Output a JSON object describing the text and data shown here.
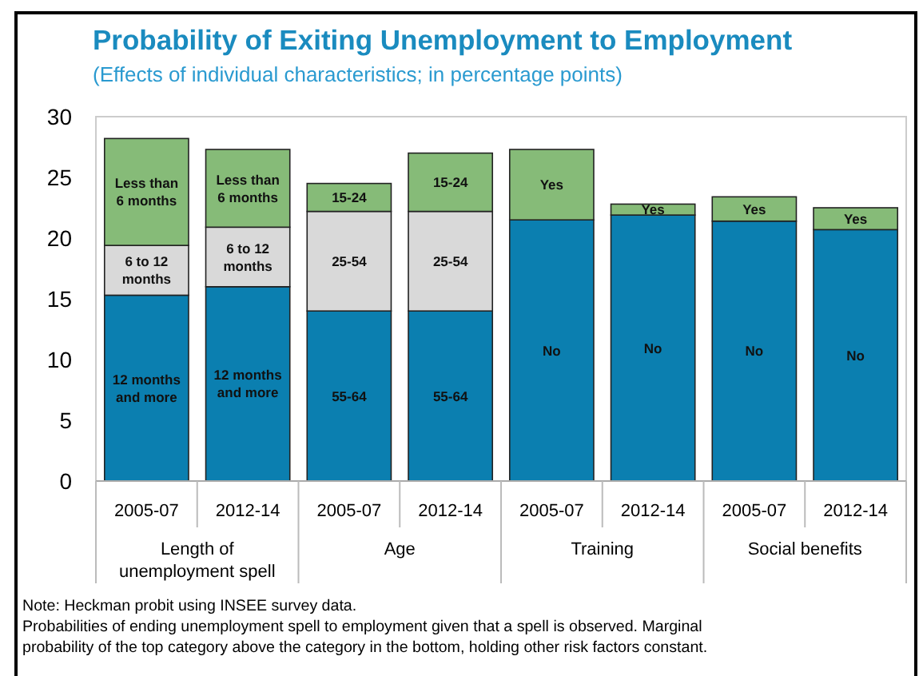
{
  "chart_data": {
    "type": "bar",
    "stacked": true,
    "title": "Probability of Exiting Unemployment to Employment",
    "subtitle": "(Effects of individual characteristics; in percentage points)",
    "categories": [
      "2005-07",
      "2012-14",
      "2005-07",
      "2012-14",
      "2005-07",
      "2012-14",
      "2005-07",
      "2012-14"
    ],
    "series": [
      {
        "color": "#0b7fb0",
        "values": [
          15.3,
          16.0,
          14.0,
          14.0,
          21.5,
          21.9,
          21.4,
          20.7
        ]
      },
      {
        "color": "#d9d9d9",
        "values": [
          4.1,
          4.9,
          8.2,
          8.2,
          null,
          null,
          null,
          null
        ]
      },
      {
        "color": "#86bb78",
        "values": [
          8.8,
          6.4,
          2.3,
          4.8,
          5.8,
          0.9,
          2.0,
          1.8
        ]
      }
    ],
    "ylim": [
      0,
      30
    ],
    "yticks": [
      0,
      5,
      10,
      15,
      20,
      25,
      30
    ],
    "annotations": [
      "Length of unemployment spell",
      "Age",
      "Training",
      "Social benefits",
      "12 months and more",
      "6 to 12 months",
      "Less than 6 months",
      "12 months and more",
      "6 to 12 months",
      "Less than 6 months",
      "55-64",
      "25-54",
      "15-24",
      "55-64",
      "25-54",
      "15-24",
      "No",
      "Yes",
      "No",
      "Yes",
      "No",
      "Yes",
      "No",
      "Yes",
      "Note: Heckman probit using INSEE survey data.",
      "Probabilities of ending unemployment spell to employment given that a spell is observed. Marginal probability of the top category above the category in the bottom, holding other risk factors constant."
    ]
  }
}
